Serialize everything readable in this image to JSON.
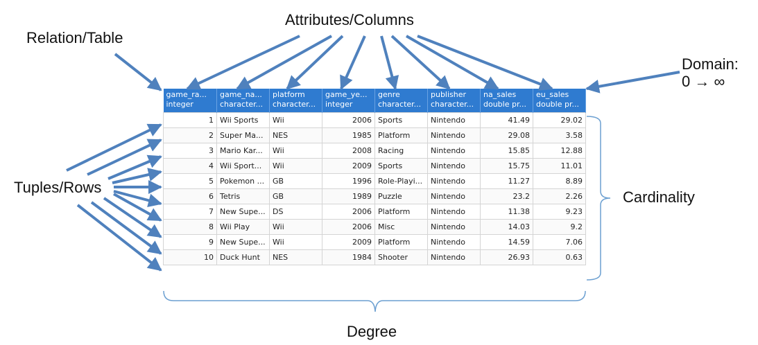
{
  "labels": {
    "attributes": "Attributes/Columns",
    "relation": "Relation/Table",
    "domain_line1": "Domain:",
    "domain_line2": "0 → ∞",
    "tuples": "Tuples/Rows",
    "cardinality": "Cardinality",
    "degree": "Degree"
  },
  "colors": {
    "arrow": "#4f81bd",
    "header": "#2f7bd0",
    "brace": "#6b9fd1"
  },
  "table": {
    "columns": [
      {
        "name": "game_ra...",
        "type": "integer"
      },
      {
        "name": "game_na...",
        "type": "character..."
      },
      {
        "name": "platform",
        "type": "character..."
      },
      {
        "name": "game_ye...",
        "type": "integer"
      },
      {
        "name": "genre",
        "type": "character..."
      },
      {
        "name": "publisher",
        "type": "character..."
      },
      {
        "name": "na_sales",
        "type": "double pr..."
      },
      {
        "name": "eu_sales",
        "type": "double pr..."
      }
    ],
    "rows": [
      [
        "1",
        "Wii Sports",
        "Wii",
        "2006",
        "Sports",
        "Nintendo",
        "41.49",
        "29.02"
      ],
      [
        "2",
        "Super Ma...",
        "NES",
        "1985",
        "Platform",
        "Nintendo",
        "29.08",
        "3.58"
      ],
      [
        "3",
        "Mario Kar...",
        "Wii",
        "2008",
        "Racing",
        "Nintendo",
        "15.85",
        "12.88"
      ],
      [
        "4",
        "Wii Sport...",
        "Wii",
        "2009",
        "Sports",
        "Nintendo",
        "15.75",
        "11.01"
      ],
      [
        "5",
        "Pokemon ...",
        "GB",
        "1996",
        "Role-Playi...",
        "Nintendo",
        "11.27",
        "8.89"
      ],
      [
        "6",
        "Tetris",
        "GB",
        "1989",
        "Puzzle",
        "Nintendo",
        "23.2",
        "2.26"
      ],
      [
        "7",
        "New Supe...",
        "DS",
        "2006",
        "Platform",
        "Nintendo",
        "11.38",
        "9.23"
      ],
      [
        "8",
        "Wii Play",
        "Wii",
        "2006",
        "Misc",
        "Nintendo",
        "14.03",
        "9.2"
      ],
      [
        "9",
        "New Supe...",
        "Wii",
        "2009",
        "Platform",
        "Nintendo",
        "14.59",
        "7.06"
      ],
      [
        "10",
        "Duck Hunt",
        "NES",
        "1984",
        "Shooter",
        "Nintendo",
        "26.93",
        "0.63"
      ]
    ]
  }
}
